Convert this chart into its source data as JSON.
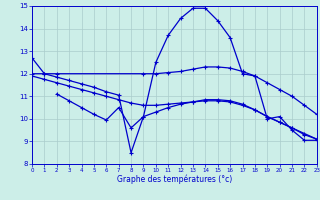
{
  "xlabel": "Graphe des températures (°c)",
  "background_color": "#cceee8",
  "line_color": "#0000cc",
  "grid_color": "#aacccc",
  "xlim": [
    0,
    23
  ],
  "ylim": [
    8,
    15
  ],
  "xticks": [
    0,
    1,
    2,
    3,
    4,
    5,
    6,
    7,
    8,
    9,
    10,
    11,
    12,
    13,
    14,
    15,
    16,
    17,
    18,
    19,
    20,
    21,
    22,
    23
  ],
  "yticks": [
    8,
    9,
    10,
    11,
    12,
    13,
    14,
    15
  ],
  "line1_x": [
    0,
    1,
    2,
    3,
    4,
    5,
    6,
    7,
    8,
    9,
    10,
    11,
    12,
    13,
    14,
    15,
    16,
    17,
    18,
    19,
    20,
    21,
    22,
    23
  ],
  "line1_y": [
    12.7,
    12.0,
    11.85,
    11.7,
    11.55,
    11.4,
    11.2,
    11.05,
    8.5,
    10.1,
    12.5,
    13.7,
    14.45,
    14.9,
    14.9,
    14.35,
    13.6,
    12.0,
    11.9,
    10.0,
    10.1,
    9.5,
    9.05,
    9.05
  ],
  "line2_x": [
    0,
    1,
    2,
    9,
    10,
    11,
    12,
    13,
    14,
    15,
    16,
    17,
    18,
    19,
    20,
    21,
    22,
    23
  ],
  "line2_y": [
    12.0,
    12.0,
    12.0,
    12.0,
    12.0,
    12.05,
    12.1,
    12.2,
    12.3,
    12.3,
    12.25,
    12.1,
    11.9,
    11.6,
    11.3,
    11.0,
    10.6,
    10.2
  ],
  "line3_x": [
    0,
    1,
    2,
    3,
    4,
    5,
    6,
    7,
    8,
    9,
    10,
    11,
    12,
    13,
    14,
    15,
    16,
    17,
    18,
    19,
    20,
    21,
    22,
    23
  ],
  "line3_y": [
    11.9,
    11.75,
    11.6,
    11.45,
    11.3,
    11.15,
    11.0,
    10.85,
    10.7,
    10.6,
    10.6,
    10.65,
    10.7,
    10.75,
    10.8,
    10.8,
    10.75,
    10.6,
    10.4,
    10.1,
    9.85,
    9.6,
    9.35,
    9.1
  ],
  "line4_x": [
    2,
    3,
    4,
    5,
    6,
    7,
    8,
    9,
    10,
    11,
    12,
    13,
    14,
    15,
    16,
    17,
    18,
    19,
    20,
    21,
    22,
    23
  ],
  "line4_y": [
    11.1,
    10.8,
    10.5,
    10.2,
    9.95,
    10.5,
    9.6,
    10.1,
    10.3,
    10.5,
    10.65,
    10.75,
    10.85,
    10.85,
    10.8,
    10.65,
    10.4,
    10.1,
    9.85,
    9.6,
    9.3,
    9.1
  ]
}
